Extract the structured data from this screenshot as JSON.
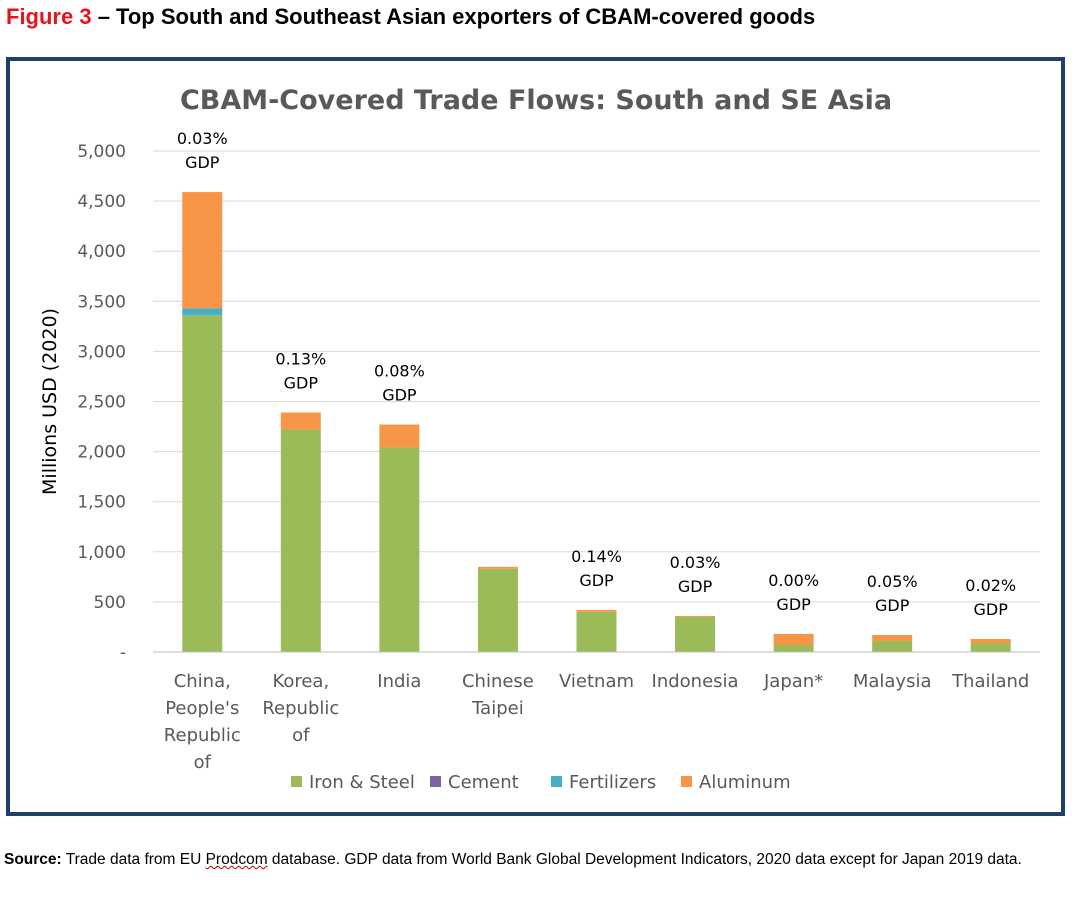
{
  "figure": {
    "number": "Figure 3",
    "title_rest": " – Top South and Southeast Asian exporters of CBAM-covered goods"
  },
  "source": {
    "label": "Source:",
    "text_before": " Trade data from EU ",
    "prodcom": "Prodcom",
    "text_after": " database. GDP data from World Bank Global Development Indicators, 2020 data except for Japan 2019 data."
  },
  "colors": {
    "frame": "#1f3f6e",
    "figure_number": "#e8141b"
  },
  "chart_data": {
    "type": "bar",
    "stacked": true,
    "title": "CBAM-Covered Trade Flows: South and SE Asia",
    "xlabel": "",
    "ylabel": "Millions USD (2020)",
    "ylim": [
      0,
      5000
    ],
    "yticks": [
      {
        "value": 0,
        "label": "-"
      },
      {
        "value": 500,
        "label": "500"
      },
      {
        "value": 1000,
        "label": "1,000"
      },
      {
        "value": 1500,
        "label": "1,500"
      },
      {
        "value": 2000,
        "label": "2,000"
      },
      {
        "value": 2500,
        "label": "2,500"
      },
      {
        "value": 3000,
        "label": "3,000"
      },
      {
        "value": 3500,
        "label": "3,500"
      },
      {
        "value": 4000,
        "label": "4,000"
      },
      {
        "value": 4500,
        "label": "4,500"
      },
      {
        "value": 5000,
        "label": "5,000"
      }
    ],
    "grid": true,
    "legend_position": "bottom",
    "categories": [
      [
        "China,",
        "People's",
        "Republic",
        "of"
      ],
      [
        "Korea,",
        "Republic",
        "of"
      ],
      [
        "India"
      ],
      [
        "Chinese",
        "Taipei"
      ],
      [
        "Vietnam"
      ],
      [
        "Indonesia"
      ],
      [
        "Japan*"
      ],
      [
        "Malaysia"
      ],
      [
        "Thailand"
      ]
    ],
    "series": [
      {
        "name": "Iron & Steel",
        "color": "#9bbb59",
        "values": [
          3360,
          2220,
          2040,
          830,
          400,
          350,
          70,
          110,
          90
        ]
      },
      {
        "name": "Cement",
        "color": "#8064a2",
        "values": [
          0,
          0,
          0,
          0,
          0,
          0,
          0,
          0,
          0
        ]
      },
      {
        "name": "Fertilizers",
        "color": "#4bacc6",
        "values": [
          70,
          0,
          0,
          0,
          0,
          0,
          0,
          0,
          0
        ]
      },
      {
        "name": "Aluminum",
        "color": "#f79646",
        "values": [
          1160,
          170,
          230,
          20,
          20,
          10,
          110,
          60,
          40
        ]
      }
    ],
    "annotations": [
      [
        "0.03%",
        "GDP"
      ],
      [
        "0.13%",
        "GDP"
      ],
      [
        "0.08%",
        "GDP"
      ],
      null,
      [
        "0.14%",
        "GDP"
      ],
      [
        "0.03%",
        "GDP"
      ],
      [
        "0.00%",
        "GDP"
      ],
      [
        "0.05%",
        "GDP"
      ],
      [
        "0.02%",
        "GDP"
      ]
    ]
  }
}
